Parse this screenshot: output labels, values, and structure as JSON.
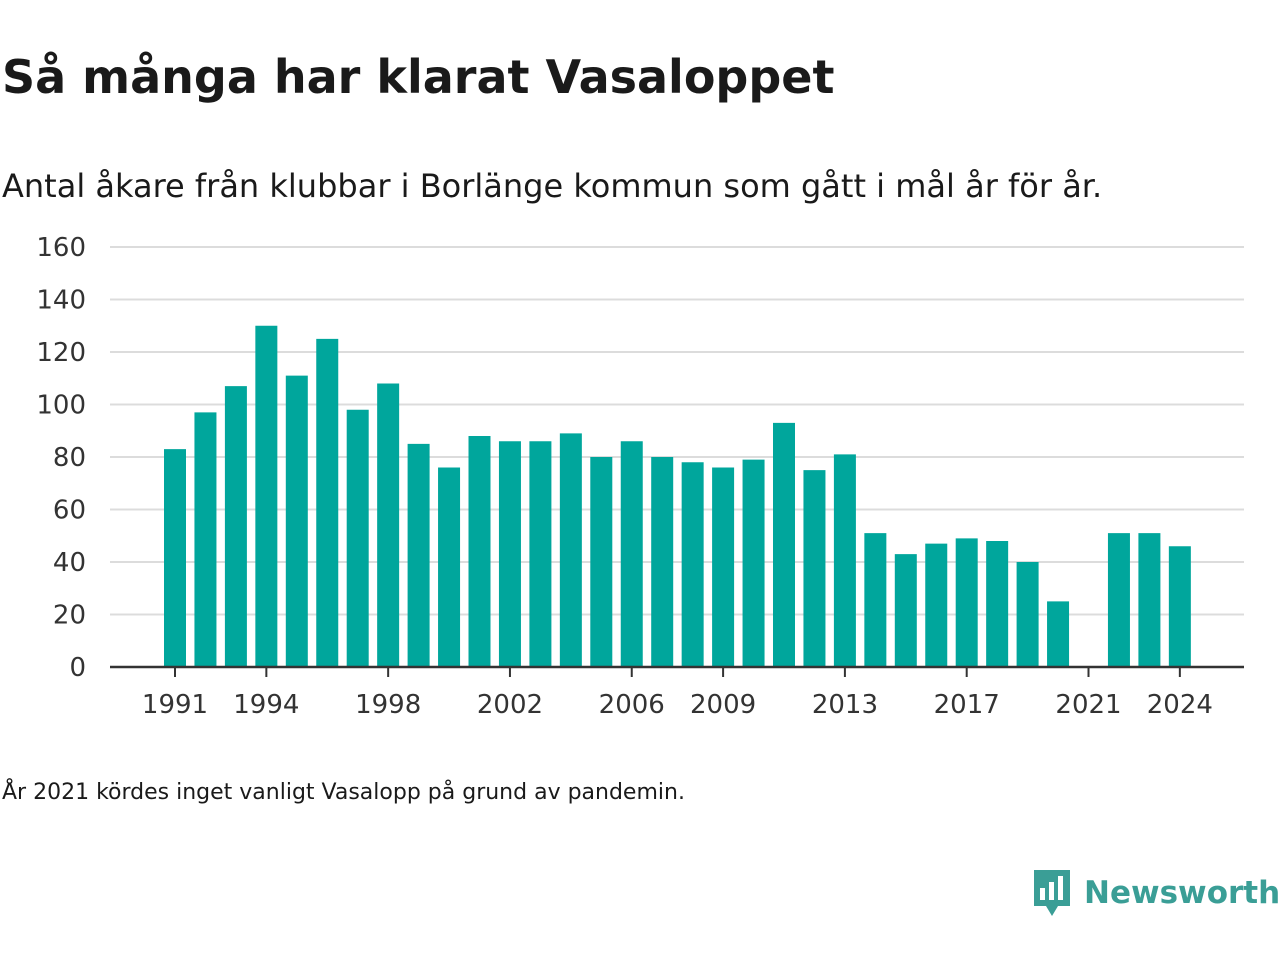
{
  "title": "Så många har klarat Vasaloppet",
  "subtitle": "Antal åkare från klubbar i Borlänge kommun som gått i mål år för år.",
  "note": "År 2021 kördes inget vanligt Vasalopp på grund av pandemin.",
  "brand": {
    "name": "Newsworthy",
    "icon": "newsworthy-logo-icon",
    "color": "#3a9e96"
  },
  "chart_data": {
    "type": "bar",
    "title": "Så många har klarat Vasaloppet",
    "subtitle": "Antal åkare från klubbar i Borlänge kommun som gått i mål år för år.",
    "xlabel": "",
    "ylabel": "",
    "ylim": [
      0,
      160
    ],
    "yticks": [
      0,
      20,
      40,
      60,
      80,
      100,
      120,
      140,
      160
    ],
    "xticks": [
      1991,
      1994,
      1998,
      2002,
      2006,
      2009,
      2013,
      2017,
      2021,
      2024
    ],
    "grid": true,
    "bar_color": "#00a69c",
    "x": [
      1991,
      1992,
      1993,
      1994,
      1995,
      1996,
      1997,
      1998,
      1999,
      2000,
      2001,
      2002,
      2003,
      2004,
      2005,
      2006,
      2007,
      2008,
      2009,
      2010,
      2011,
      2012,
      2013,
      2014,
      2015,
      2016,
      2017,
      2018,
      2019,
      2020,
      2021,
      2022,
      2023,
      2024
    ],
    "values": [
      83,
      97,
      107,
      130,
      111,
      125,
      98,
      108,
      85,
      76,
      88,
      86,
      86,
      89,
      80,
      86,
      80,
      78,
      76,
      79,
      93,
      75,
      81,
      51,
      43,
      47,
      49,
      48,
      40,
      25,
      null,
      51,
      51,
      46
    ]
  }
}
